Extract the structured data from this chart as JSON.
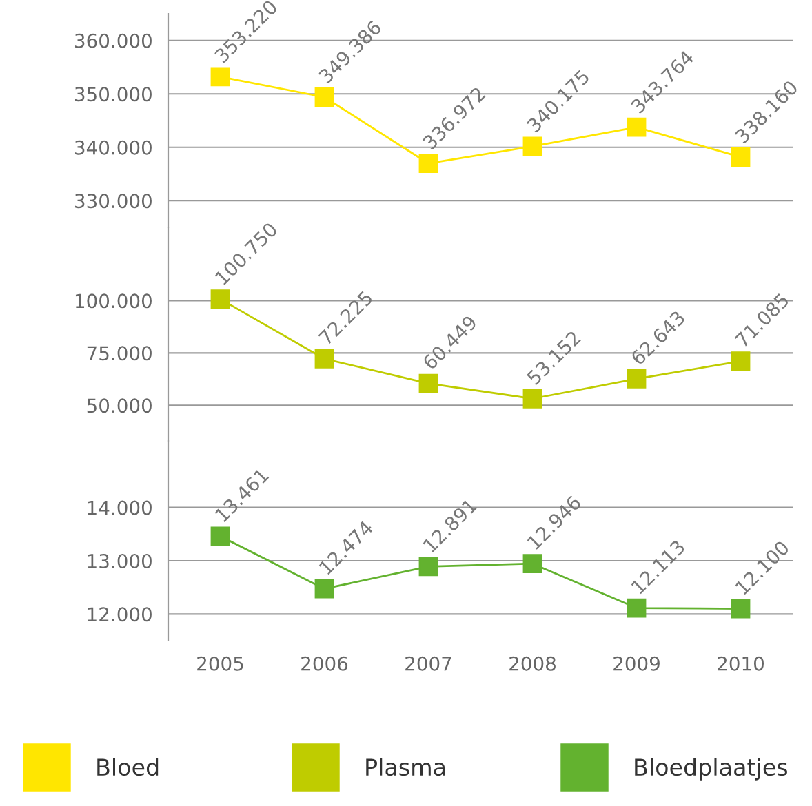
{
  "chart_data": [
    {
      "type": "line",
      "categories": [
        "2005",
        "2006",
        "2007",
        "2008",
        "2009",
        "2010"
      ],
      "series": [
        {
          "name": "Bloed",
          "color": "#ffe600",
          "values": [
            353220,
            349386,
            336972,
            340175,
            343764,
            338160
          ],
          "value_labels": [
            "353.220",
            "349.386",
            "336.972",
            "340.175",
            "343.764",
            "338.160"
          ]
        }
      ],
      "ylim": [
        325000,
        365000
      ],
      "yticks": [
        {
          "value": 330000,
          "label": "330.000"
        },
        {
          "value": 340000,
          "label": "340.000"
        },
        {
          "value": 350000,
          "label": "350.000"
        },
        {
          "value": 360000,
          "label": "360.000"
        }
      ],
      "tick_labels": "y",
      "grid": "y",
      "marker": "square",
      "line_style": "solid",
      "legend": "bottom"
    },
    {
      "type": "line",
      "categories": [
        "2005",
        "2006",
        "2007",
        "2008",
        "2009",
        "2010"
      ],
      "series": [
        {
          "name": "Plasma",
          "color": "#bfcc00",
          "values": [
            100750,
            72225,
            60449,
            53152,
            62643,
            71085
          ],
          "value_labels": [
            "100.750",
            "72.225",
            "60.449",
            "53.152",
            "62.643",
            "71.085"
          ]
        }
      ],
      "ylim": [
        33000,
        135000
      ],
      "yticks": [
        {
          "value": 50000,
          "label": "50.000"
        },
        {
          "value": 75000,
          "label": "75.000"
        },
        {
          "value": 100000,
          "label": "100.000"
        }
      ],
      "tick_labels": "y",
      "grid": "y",
      "marker": "square",
      "line_style": "solid",
      "legend": "bottom"
    },
    {
      "type": "line",
      "categories": [
        "2005",
        "2006",
        "2007",
        "2008",
        "2009",
        "2010"
      ],
      "series": [
        {
          "name": "Bloedplaatjes",
          "color": "#63b22f",
          "values": [
            13461,
            12474,
            12891,
            12946,
            12113,
            12100
          ],
          "value_labels": [
            "13.461",
            "12.474",
            "12.891",
            "12.946",
            "12.113",
            "12.100"
          ]
        }
      ],
      "ylim": [
        11500,
        15250
      ],
      "yticks": [
        {
          "value": 12000,
          "label": "12.000"
        },
        {
          "value": 13000,
          "label": "13.000"
        },
        {
          "value": 14000,
          "label": "14.000"
        }
      ],
      "grid": "y",
      "marker": "square",
      "line_style": "solid",
      "legend": "bottom"
    }
  ]
}
